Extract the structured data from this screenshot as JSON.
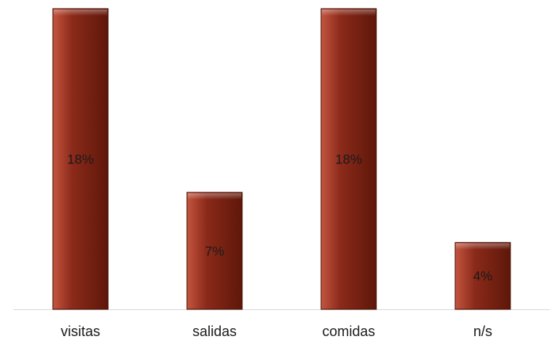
{
  "chart_data": {
    "type": "bar",
    "title": "",
    "xlabel": "",
    "ylabel": "",
    "categories": [
      "visitas",
      "salidas",
      "comidas",
      "n/s"
    ],
    "values": [
      18,
      7,
      18,
      4
    ],
    "value_labels": [
      "18%",
      "7%",
      "18%",
      "4%"
    ],
    "ylim": [
      0,
      18
    ],
    "grid": false,
    "legend": "none",
    "colors": {
      "bar": "#8B2A1A",
      "bar_light": "#C4553F",
      "bar_dark": "#5E1709",
      "bar_outline": "#4A1206",
      "axis": "#d9d9d9"
    }
  }
}
